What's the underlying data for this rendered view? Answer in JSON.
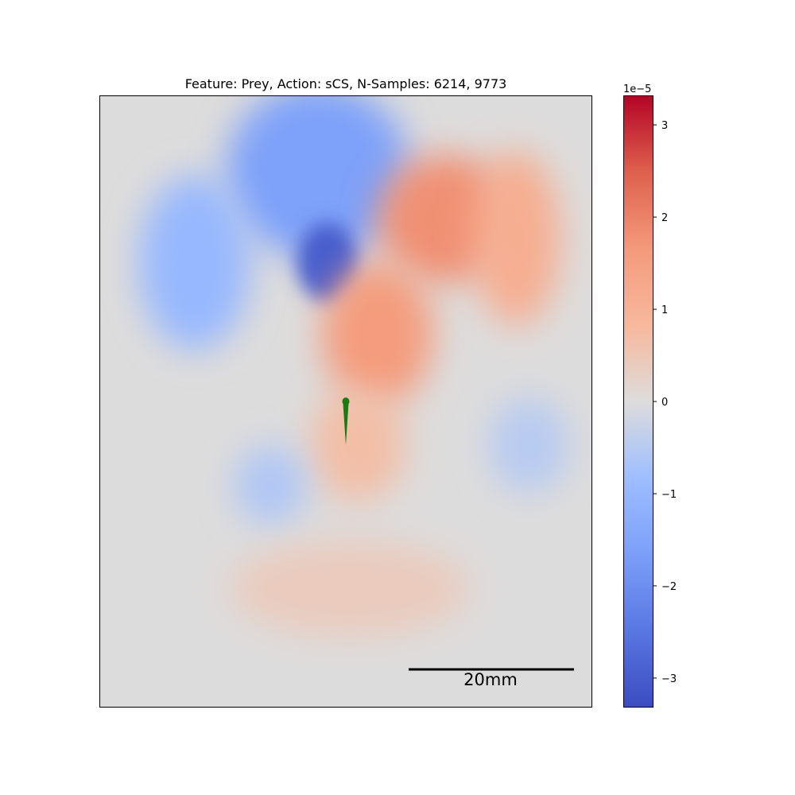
{
  "chart_data": {
    "type": "heatmap",
    "title": "Feature: Prey, Action: sCS, N-Samples: 6214, 9773",
    "xlabel": "",
    "ylabel": "",
    "colormap": "coolwarm",
    "colorbar": {
      "offset_label": "1e−5",
      "range": [
        -3.32,
        3.32
      ],
      "ticks": [
        3,
        2,
        1,
        0,
        -1,
        -2,
        -3
      ],
      "tick_labels": [
        "3",
        "2",
        "1",
        "0",
        "−1",
        "−2",
        "−3"
      ]
    },
    "grid": false,
    "axes_ticks": false,
    "scale_bar": {
      "label": "20mm",
      "length_mm": 20
    },
    "marker": {
      "name": "fish",
      "color": "#1b7a12"
    },
    "field_blobs": [
      {
        "label": "blue lobe (upper left)",
        "value": -1.6
      },
      {
        "label": "blue core",
        "value": -3.0
      },
      {
        "label": "blue left extension",
        "value": -1.0
      },
      {
        "label": "red ridge upper right",
        "value": 1.8
      },
      {
        "label": "red ridge center",
        "value": 1.6
      },
      {
        "label": "red tail far right",
        "value": 1.1
      },
      {
        "label": "red below marker",
        "value": 0.7
      },
      {
        "label": "light blue lower left",
        "value": -0.6
      },
      {
        "label": "light blue right",
        "value": -0.5
      },
      {
        "label": "faint red bottom",
        "value": 0.4
      }
    ]
  },
  "colors": {
    "coolwarm_low": "#3b4cc0",
    "coolwarm_mid": "#dddcdc",
    "coolwarm_high": "#b40426",
    "marker": "#1b7a12",
    "scale_bar": "#000000"
  }
}
